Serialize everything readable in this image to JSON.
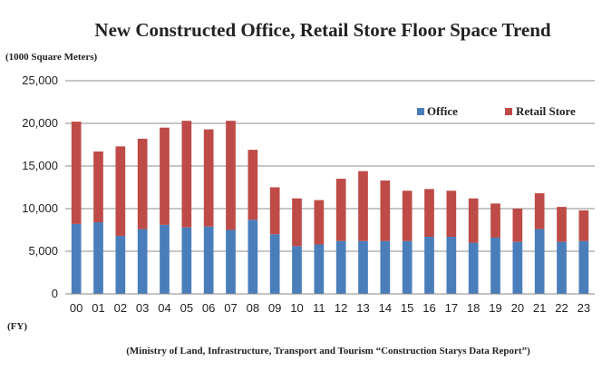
{
  "chart_data": {
    "type": "bar",
    "stacked": true,
    "title": "New Constructed Office, Retail Store Floor Space Trend",
    "ylabel": "(1000 Square Meters)",
    "xlabel": "(FY)",
    "source": "(Ministry of Land, Infrastructure, Transport and Tourism “Construction Starys Data Report”)",
    "ylim": [
      0,
      25000
    ],
    "yticks": [
      "0",
      "5,000",
      "10,000",
      "15,000",
      "20,000",
      "25,000"
    ],
    "ytick_values": [
      0,
      5000,
      10000,
      15000,
      20000,
      25000
    ],
    "grid": true,
    "legend_position": "top-right",
    "categories": [
      "00",
      "01",
      "02",
      "03",
      "04",
      "05",
      "06",
      "07",
      "08",
      "09",
      "10",
      "11",
      "12",
      "13",
      "14",
      "15",
      "16",
      "17",
      "18",
      "19",
      "20",
      "21",
      "22",
      "23"
    ],
    "series": [
      {
        "name": "Office",
        "color": "#4a7ebb",
        "values": [
          8200,
          8400,
          6800,
          7600,
          8100,
          7800,
          7900,
          7500,
          8700,
          7000,
          5600,
          5800,
          6200,
          6200,
          6200,
          6200,
          6700,
          6700,
          6000,
          6600,
          6100,
          7600,
          6100,
          6200
        ]
      },
      {
        "name": "Retail Store",
        "color": "#be4b48",
        "values": [
          12000,
          8300,
          10500,
          10600,
          11400,
          12500,
          11400,
          12800,
          8200,
          5500,
          5600,
          5200,
          7300,
          8200,
          7100,
          5900,
          5600,
          5400,
          5200,
          4000,
          3900,
          4200,
          4100,
          3600
        ]
      }
    ]
  }
}
